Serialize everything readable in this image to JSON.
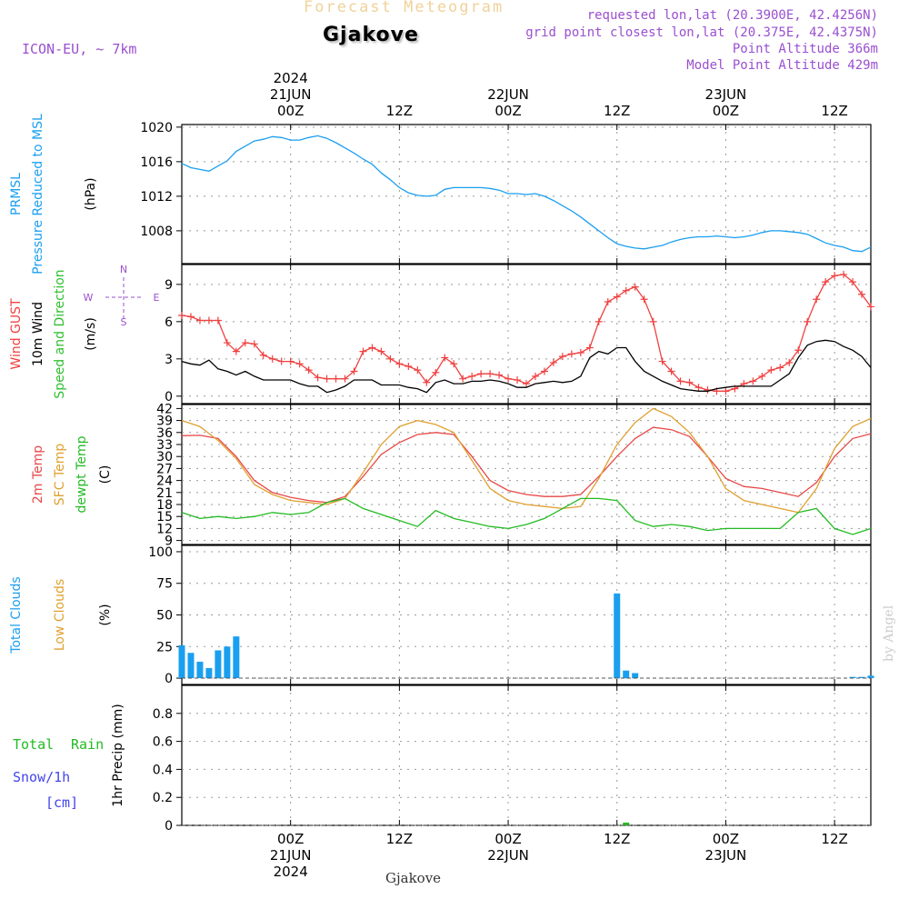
{
  "header": {
    "title": "Forecast Meteogram",
    "station": "Gjakove",
    "model": "ICON-EU, ~ 7km",
    "requested": "requested lon,lat (20.3900E, 42.4256N)",
    "grid_point": "grid point closest lon,lat (20.375E, 42.4375N)",
    "point_altitude": "Point Altitude 366m",
    "model_altitude": "Model Point Altitude 429m"
  },
  "footer": {
    "station": "Gjakove",
    "credit": "by Angel"
  },
  "colors": {
    "pressure": "#1a9ff0",
    "gust": "#f04040",
    "wind": "#000000",
    "dir": "#2fbf2f",
    "temp2m": "#e84848",
    "sfc": "#e0a030",
    "dewpt": "#22bb22",
    "total_clouds": "#1a9ff0",
    "low_clouds": "#e0a030",
    "rain": "#22bb22",
    "snow": "#4444ee",
    "compass": "#9a4fd0"
  },
  "time_axis": {
    "top_labels": [
      {
        "t": 12,
        "lines": [
          "2024",
          "21JUN",
          "00Z"
        ]
      },
      {
        "t": 24,
        "lines": [
          "12Z"
        ]
      },
      {
        "t": 36,
        "lines": [
          "22JUN",
          "00Z"
        ]
      },
      {
        "t": 48,
        "lines": [
          "12Z"
        ]
      },
      {
        "t": 60,
        "lines": [
          "23JUN",
          "00Z"
        ]
      },
      {
        "t": 72,
        "lines": [
          "12Z"
        ]
      }
    ],
    "bottom_labels": [
      {
        "t": 12,
        "lines": [
          "00Z",
          "21JUN",
          "2024"
        ]
      },
      {
        "t": 24,
        "lines": [
          "12Z"
        ]
      },
      {
        "t": 36,
        "lines": [
          "00Z",
          "22JUN"
        ]
      },
      {
        "t": 48,
        "lines": [
          "12Z"
        ]
      },
      {
        "t": 60,
        "lines": [
          "00Z",
          "23JUN"
        ]
      },
      {
        "t": 72,
        "lines": [
          "12Z"
        ]
      }
    ]
  },
  "chart_data": [
    {
      "type": "line",
      "title": "PRMSL Pressure Reduced to MSL",
      "ylabel_parts": [
        {
          "text": "PRMSL",
          "color": "pressure"
        },
        {
          "text": "Pressure Reduced to MSL",
          "color": "pressure"
        },
        {
          "text": "(hPa)",
          "color": "wind"
        }
      ],
      "ylim": [
        1004.2,
        1020.3
      ],
      "yticks": [
        1008,
        1012,
        1016,
        1020
      ],
      "x": [
        0,
        1,
        2,
        3,
        4,
        5,
        6,
        7,
        8,
        9,
        10,
        11,
        12,
        13,
        14,
        15,
        16,
        17,
        18,
        19,
        20,
        21,
        22,
        23,
        24,
        25,
        26,
        27,
        28,
        29,
        30,
        31,
        32,
        33,
        34,
        35,
        36,
        37,
        38,
        39,
        40,
        41,
        42,
        43,
        44,
        45,
        46,
        47,
        48,
        49,
        50,
        51,
        52,
        53,
        54,
        55,
        56,
        57,
        58,
        59,
        60,
        61,
        62,
        63,
        64,
        65,
        66,
        67,
        68,
        69,
        70,
        71,
        72,
        73,
        74,
        75,
        76
      ],
      "series": [
        {
          "name": "PRMSL",
          "color": "pressure",
          "values": [
            1015.8,
            1015.3,
            1015.1,
            1014.9,
            1015.5,
            1016.1,
            1017.2,
            1017.8,
            1018.4,
            1018.6,
            1018.9,
            1018.8,
            1018.5,
            1018.5,
            1018.8,
            1019.0,
            1018.7,
            1018.2,
            1017.6,
            1017.0,
            1016.3,
            1015.7,
            1014.7,
            1013.9,
            1013.0,
            1012.4,
            1012.1,
            1012.0,
            1012.1,
            1012.8,
            1013.0,
            1013.0,
            1013.0,
            1013.0,
            1012.9,
            1012.7,
            1012.3,
            1012.3,
            1012.2,
            1012.3,
            1012.0,
            1011.5,
            1010.9,
            1010.3,
            1009.6,
            1008.8,
            1008.0,
            1007.2,
            1006.5,
            1006.2,
            1006.0,
            1005.9,
            1006.1,
            1006.3,
            1006.7,
            1007.0,
            1007.2,
            1007.3,
            1007.3,
            1007.4,
            1007.3,
            1007.2,
            1007.3,
            1007.5,
            1007.8,
            1008.0,
            1008.0,
            1007.9,
            1007.8,
            1007.6,
            1007.1,
            1006.6,
            1006.3,
            1006.1,
            1005.7,
            1005.6,
            1006.1
          ]
        }
      ]
    },
    {
      "type": "line",
      "title": "Wind GUST / 10m Wind Speed and Direction",
      "ylabel_parts": [
        {
          "text": "Wind GUST",
          "color": "gust"
        },
        {
          "text": "10m Wind",
          "color": "wind"
        },
        {
          "text": "Speed and Direction",
          "color": "dir"
        },
        {
          "text": "(m/s)",
          "color": "wind"
        }
      ],
      "compass": {
        "n": "N",
        "s": "S",
        "w": "W",
        "e": "E"
      },
      "ylim": [
        -0.6,
        10.6
      ],
      "yticks": [
        0,
        3,
        6,
        9
      ],
      "x": [
        0,
        1,
        2,
        3,
        4,
        5,
        6,
        7,
        8,
        9,
        10,
        11,
        12,
        13,
        14,
        15,
        16,
        17,
        18,
        19,
        20,
        21,
        22,
        23,
        24,
        25,
        26,
        27,
        28,
        29,
        30,
        31,
        32,
        33,
        34,
        35,
        36,
        37,
        38,
        39,
        40,
        41,
        42,
        43,
        44,
        45,
        46,
        47,
        48,
        49,
        50,
        51,
        52,
        53,
        54,
        55,
        56,
        57,
        58,
        59,
        60,
        61,
        62,
        63,
        64,
        65,
        66,
        67,
        68,
        69,
        70,
        71,
        72,
        73,
        74,
        75,
        76
      ],
      "series": [
        {
          "name": "Wind GUST",
          "color": "gust",
          "markers": "plus",
          "values": [
            6.5,
            6.4,
            6.1,
            6.1,
            6.1,
            4.3,
            3.6,
            4.3,
            4.2,
            3.3,
            3.0,
            2.8,
            2.8,
            2.6,
            2.1,
            1.5,
            1.4,
            1.4,
            1.4,
            2.0,
            3.6,
            3.9,
            3.6,
            3.0,
            2.6,
            2.4,
            2.1,
            1.1,
            1.9,
            3.1,
            2.6,
            1.4,
            1.6,
            1.8,
            1.8,
            1.7,
            1.4,
            1.3,
            1.0,
            1.6,
            2.0,
            2.7,
            3.2,
            3.4,
            3.5,
            3.9,
            6.0,
            7.6,
            8.0,
            8.5,
            8.8,
            7.8,
            6.0,
            2.8,
            2.0,
            1.2,
            1.1,
            0.7,
            0.5,
            0.4,
            0.4,
            0.6,
            1.0,
            1.2,
            1.6,
            2.1,
            2.3,
            2.7,
            3.7,
            6.0,
            7.8,
            9.2,
            9.7,
            9.8,
            9.2,
            8.2,
            7.2
          ]
        },
        {
          "name": "10m Wind",
          "color": "wind",
          "values": [
            2.8,
            2.6,
            2.5,
            2.9,
            2.2,
            2.0,
            1.7,
            2.0,
            1.6,
            1.3,
            1.3,
            1.3,
            1.3,
            1.0,
            0.8,
            0.8,
            0.3,
            0.5,
            0.8,
            1.3,
            1.3,
            1.3,
            0.9,
            0.9,
            0.9,
            0.7,
            0.6,
            0.3,
            1.1,
            1.3,
            1.0,
            1.0,
            1.2,
            1.2,
            1.3,
            1.2,
            1.0,
            0.7,
            0.7,
            1.0,
            1.1,
            1.2,
            1.1,
            1.2,
            1.6,
            3.1,
            3.6,
            3.4,
            3.9,
            3.9,
            2.8,
            2.0,
            1.6,
            1.2,
            0.9,
            0.6,
            0.5,
            0.4,
            0.4,
            0.6,
            0.7,
            0.8,
            0.8,
            0.8,
            0.8,
            0.8,
            1.3,
            1.8,
            3.1,
            4.1,
            4.4,
            4.5,
            4.4,
            4.0,
            3.7,
            3.2,
            2.3
          ]
        }
      ]
    },
    {
      "type": "line",
      "title": "2m Temp / SFC Temp / dewpt Temp",
      "ylabel_parts": [
        {
          "text": "2m Temp",
          "color": "temp2m"
        },
        {
          "text": "SFC Temp",
          "color": "sfc"
        },
        {
          "text": "dewpt Temp",
          "color": "dewpt"
        },
        {
          "text": "(C)",
          "color": "wind"
        }
      ],
      "ylim": [
        8,
        43
      ],
      "yticks": [
        9,
        12,
        15,
        18,
        21,
        24,
        27,
        30,
        33,
        36,
        39,
        42
      ],
      "x": [
        0,
        2,
        4,
        6,
        8,
        10,
        12,
        14,
        16,
        18,
        20,
        22,
        24,
        26,
        28,
        30,
        32,
        34,
        36,
        38,
        40,
        42,
        44,
        46,
        48,
        50,
        52,
        54,
        56,
        58,
        60,
        62,
        64,
        66,
        68,
        70,
        72,
        74,
        76
      ],
      "series": [
        {
          "name": "2m Temp",
          "color": "temp2m",
          "values": [
            35.2,
            35.3,
            34.5,
            30.0,
            24.0,
            21.0,
            19.8,
            19.0,
            18.5,
            20.0,
            25.0,
            30.5,
            33.5,
            35.5,
            36.0,
            35.5,
            30.0,
            24.0,
            21.5,
            20.5,
            20.0,
            20.0,
            20.5,
            25.0,
            30.0,
            34.5,
            37.3,
            36.7,
            35.0,
            30.0,
            24.5,
            22.5,
            22.0,
            21.0,
            20.0,
            23.5,
            30.0,
            34.5,
            35.7
          ]
        },
        {
          "name": "SFC Temp",
          "color": "sfc",
          "values": [
            39.0,
            37.5,
            34.0,
            29.5,
            23.0,
            20.5,
            19.0,
            18.5,
            18.0,
            19.5,
            26.0,
            33.0,
            37.5,
            39.0,
            38.0,
            36.0,
            29.0,
            22.0,
            19.0,
            18.0,
            17.5,
            17.0,
            17.5,
            24.5,
            33.0,
            38.5,
            42.0,
            40.0,
            36.0,
            30.0,
            22.0,
            19.0,
            18.0,
            17.0,
            16.0,
            22.0,
            32.0,
            37.5,
            39.5
          ]
        },
        {
          "name": "dewpt Temp",
          "color": "dewpt",
          "values": [
            16.0,
            14.5,
            15.0,
            14.5,
            15.0,
            16.0,
            15.5,
            16.0,
            18.5,
            19.5,
            17.0,
            15.5,
            14.0,
            12.5,
            16.5,
            14.5,
            13.5,
            12.5,
            12.0,
            13.0,
            14.5,
            17.0,
            19.5,
            19.5,
            19.0,
            14.0,
            12.5,
            13.0,
            12.5,
            11.5,
            12.0,
            12.0,
            12.0,
            12.0,
            16.0,
            17.0,
            12.0,
            10.5,
            12.0
          ]
        }
      ]
    },
    {
      "type": "bar",
      "title": "Total Clouds / Low Clouds",
      "ylabel_parts": [
        {
          "text": "Total Clouds",
          "color": "total_clouds"
        },
        {
          "text": "Low Clouds",
          "color": "low_clouds"
        },
        {
          "text": "(%)",
          "color": "wind"
        }
      ],
      "ylim": [
        -5,
        105
      ],
      "yticks": [
        0,
        25,
        50,
        75,
        100
      ],
      "x": [
        0,
        1,
        2,
        3,
        4,
        5,
        6,
        48,
        49,
        50,
        74,
        75,
        76
      ],
      "series": [
        {
          "name": "Total Clouds",
          "color": "total_clouds",
          "values": [
            26,
            20,
            13,
            8,
            22,
            25,
            33,
            67,
            6,
            4,
            1,
            1,
            2
          ]
        }
      ]
    },
    {
      "type": "bar",
      "title": "1hr Precip",
      "ylabel_parts": [
        {
          "text": "Total",
          "color": "rain"
        },
        {
          "text": "Rain",
          "color": "rain"
        },
        {
          "text": "Snow/1h",
          "color": "snow"
        },
        {
          "text": "[cm]",
          "color": "snow"
        },
        {
          "text": "1hr Precip (mm)",
          "color": "wind"
        }
      ],
      "ylim": [
        0,
        1.0
      ],
      "yticks": [
        0,
        0.2,
        0.4,
        0.6,
        0.8
      ],
      "x": [
        49
      ],
      "series": [
        {
          "name": "Rain",
          "color": "rain",
          "values": [
            0.02
          ]
        }
      ]
    }
  ]
}
